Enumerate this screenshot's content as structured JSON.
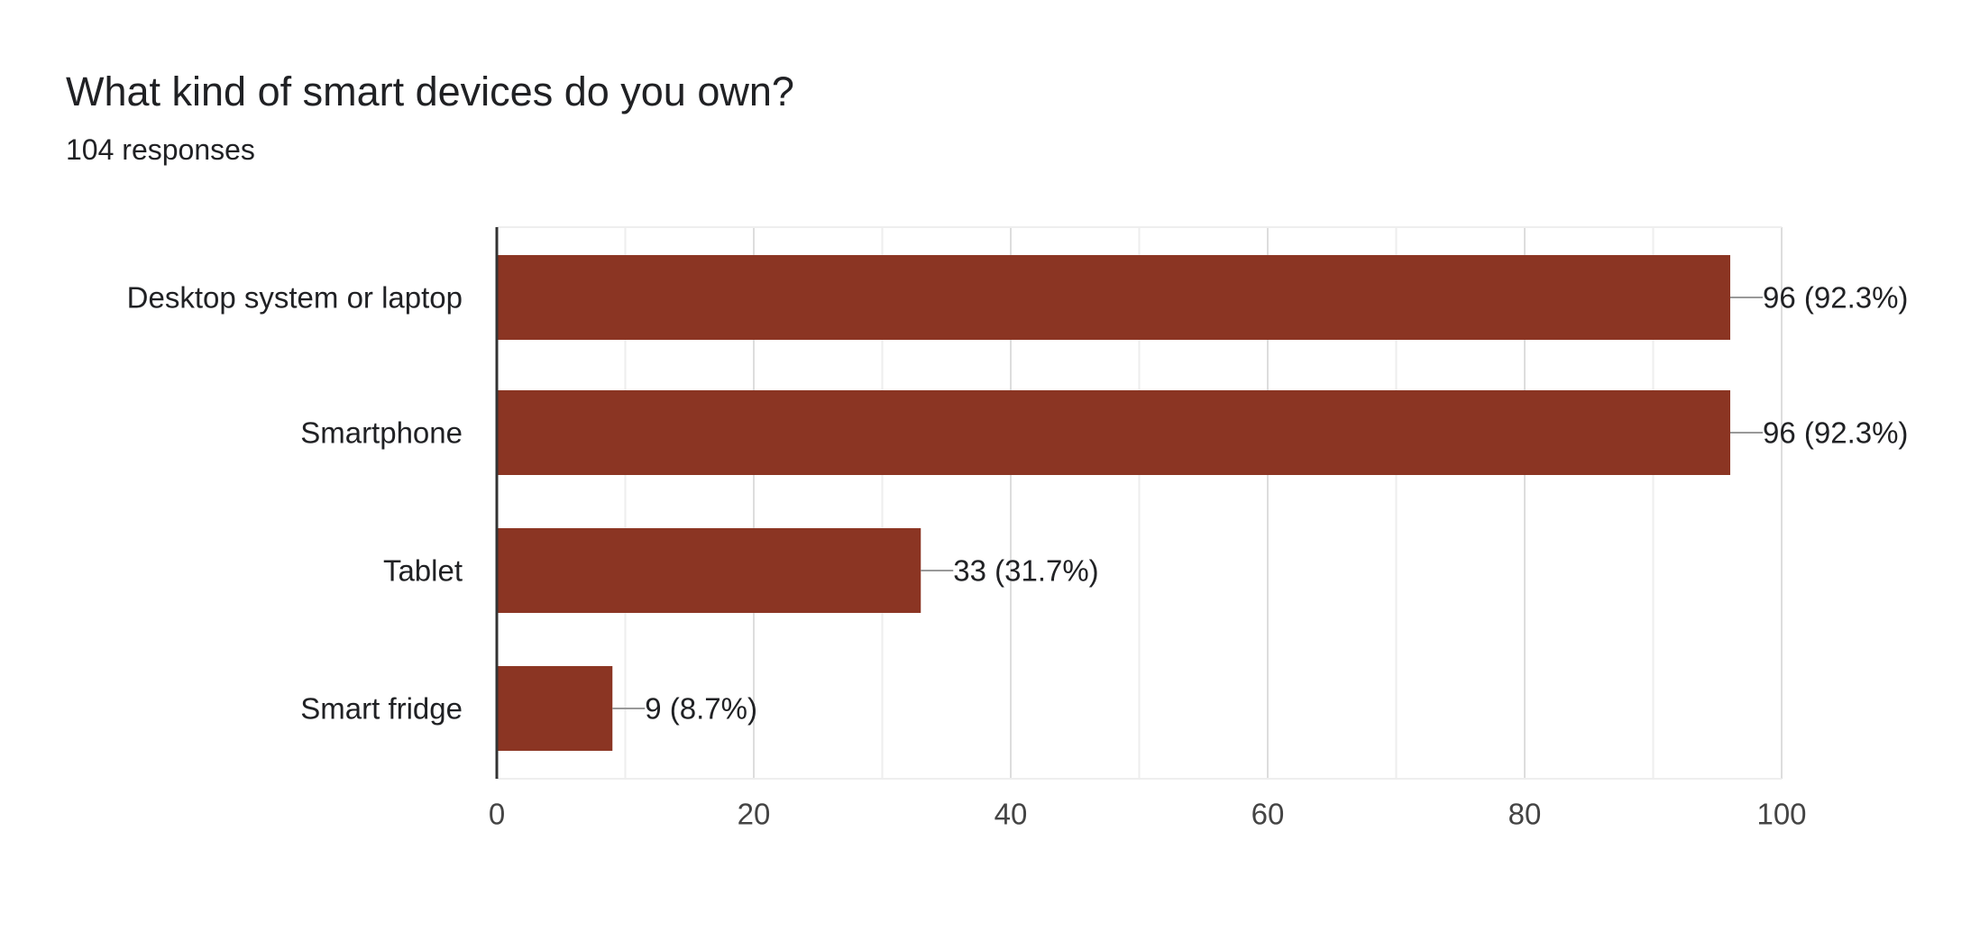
{
  "question": {
    "title": "What kind of smart devices do you own?",
    "responses_text": "104 responses"
  },
  "colors": {
    "bar": "#8b3523",
    "grid_major": "#dddddd",
    "grid_minor": "#eeeeee",
    "axis": "#333333",
    "leader": "#999999"
  },
  "chart_data": {
    "type": "bar",
    "orientation": "horizontal",
    "categories": [
      "Desktop system or laptop",
      "Smartphone",
      "Tablet",
      "Smart fridge"
    ],
    "values": [
      96,
      96,
      33,
      9
    ],
    "data_labels": [
      "96 (92.3%)",
      "96 (92.3%)",
      "33 (31.7%)",
      "9 (8.7%)"
    ],
    "xlim": [
      0,
      100
    ],
    "x_ticks": [
      0,
      20,
      40,
      60,
      80,
      100
    ],
    "x_tick_labels": [
      "0",
      "20",
      "40",
      "60",
      "80",
      "100"
    ],
    "grid": true,
    "legend": "none"
  }
}
